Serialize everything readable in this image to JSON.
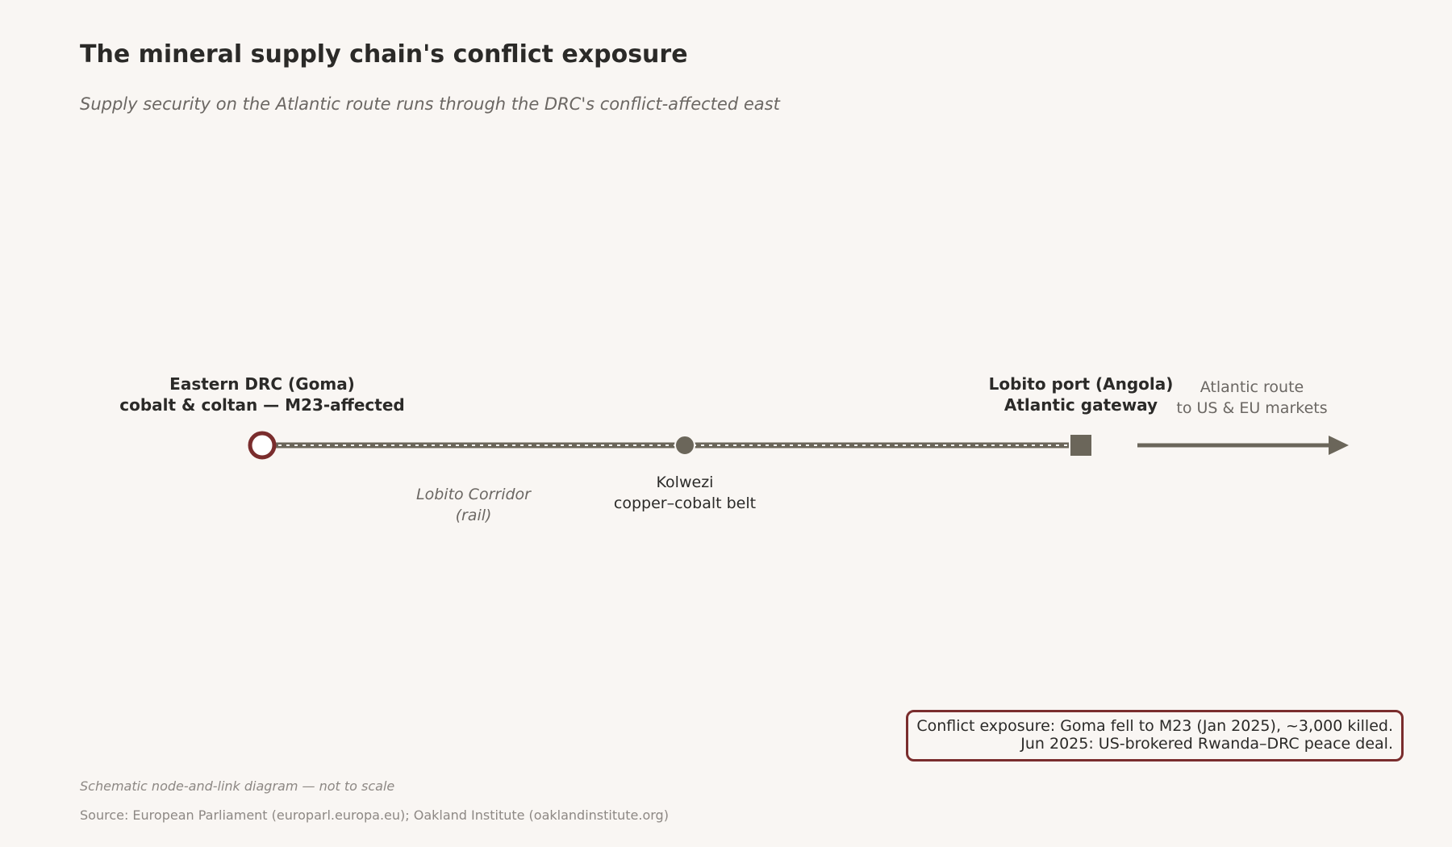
{
  "header": {
    "title": "The mineral supply chain's conflict exposure",
    "subtitle": "Supply security on the Atlantic route runs through the DRC's conflict-affected east"
  },
  "nodes": {
    "goma": {
      "line1": "Eastern DRC (Goma)",
      "line2": "cobalt & coltan — M23-affected",
      "marker": "hollow-circle",
      "color": "#7a2d2d"
    },
    "kolwezi": {
      "line1": "Kolwezi",
      "line2": "copper–cobalt belt",
      "marker": "filled-circle",
      "color": "#6b665a"
    },
    "lobito": {
      "line1": "Lobito port (Angola)",
      "line2": "Atlantic gateway",
      "marker": "filled-square",
      "color": "#6b665a"
    }
  },
  "corridor": {
    "line1": "Lobito Corridor",
    "line2": "(rail)"
  },
  "route": {
    "line1": "Atlantic route",
    "line2": "to US & EU markets",
    "icon": "arrow-right-icon"
  },
  "callout": {
    "line1": "Conflict exposure: Goma fell to M23 (Jan 2025), ~3,000 killed.",
    "line2": "Jun 2025: US-brokered Rwanda–DRC peace deal.",
    "border_color": "#7a2d2d"
  },
  "footer": {
    "note": "Schematic node-and-link diagram — not to scale",
    "source": "Source: European Parliament (europarl.europa.eu); Oakland Institute (oaklandinstitute.org)"
  }
}
